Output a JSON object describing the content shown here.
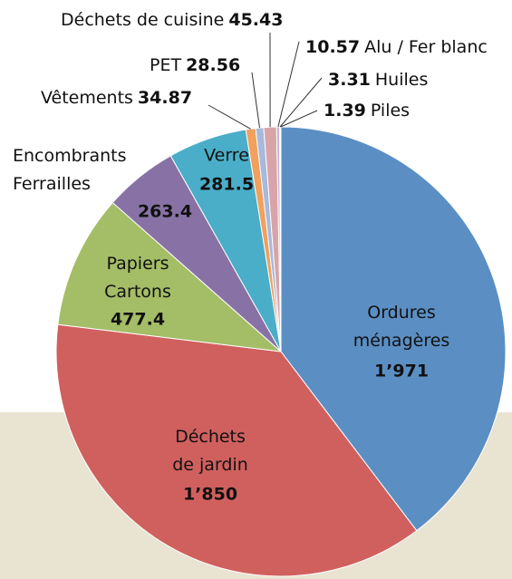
{
  "chart_data": {
    "type": "pie",
    "categories": [
      "Ordures\nménagères",
      "Déchets\nde jardin",
      "Papiers\nCartons",
      "Encombrants\nFerrailles",
      "Verre",
      "Vêtements",
      "PET",
      "Déchets de cuisine",
      "Alu / Fer blanc",
      "Huiles",
      "Piles"
    ],
    "values": [
      1971,
      1850,
      477.4,
      263.4,
      281.5,
      34.87,
      28.56,
      45.43,
      10.57,
      3.31,
      1.39
    ],
    "value_labels": [
      "1’971",
      "1’850",
      "477.4",
      "263.4",
      "281.5",
      "34.87",
      "28.56",
      "45.43",
      "10.57",
      "3.31",
      "1.39"
    ],
    "colors": [
      "#5b8fc4",
      "#d0605e",
      "#a4bd67",
      "#8872a5",
      "#4aaec8",
      "#f1a05e",
      "#a7b9dc",
      "#d8a4a8",
      "#c3b3d4",
      "#c9dba6",
      "#f0b5b1"
    ]
  }
}
